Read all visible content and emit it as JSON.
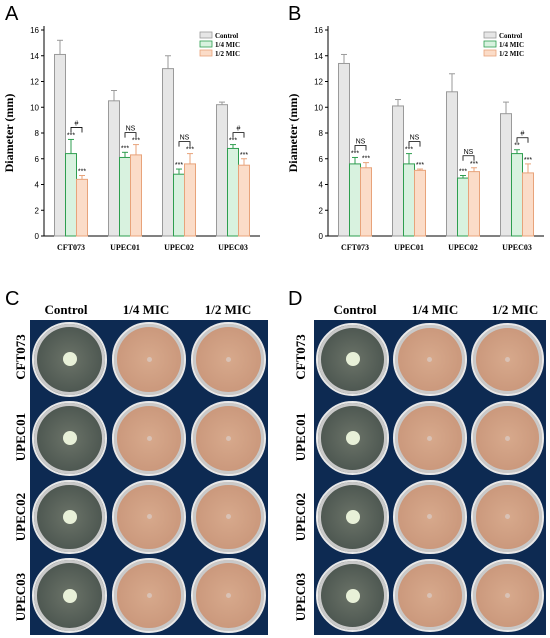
{
  "panels": {
    "a": "A",
    "b": "B",
    "c": "C",
    "d": "D"
  },
  "photo_headers": [
    "Control",
    "1/4 MIC",
    "1/2 MIC"
  ],
  "photo_rows": [
    "CFT073",
    "UPEC01",
    "UPEC02",
    "UPEC03"
  ],
  "colors": {
    "control": "#e6e6e6",
    "control_edge": "#9a9a9a",
    "quarter": "#d8f2df",
    "quarter_edge": "#2e9e4f",
    "half": "#fbdcc8",
    "half_edge": "#e8a37a",
    "dish_control": "#6b7368",
    "dish_treated": "#d7a98c",
    "photo_bg": "#0d2a52"
  },
  "chart_data": [
    {
      "panel": "A",
      "type": "bar",
      "ylabel": "Diameter (mm)",
      "ylim": [
        0,
        16
      ],
      "yticks": [
        "0",
        "2",
        "4",
        "6",
        "8",
        "10",
        "12",
        "14",
        "16"
      ],
      "categories": [
        "CFT073",
        "UPEC01",
        "UPEC02",
        "UPEC03"
      ],
      "series": [
        {
          "name": "Control",
          "values": [
            14.1,
            10.5,
            13.0,
            10.2
          ],
          "errors": [
            1.1,
            0.8,
            1.0,
            0.2
          ]
        },
        {
          "name": "1/4 MIC",
          "values": [
            6.4,
            6.1,
            4.8,
            6.8
          ],
          "errors": [
            1.1,
            0.4,
            0.4,
            0.3
          ]
        },
        {
          "name": "1/2 MIC",
          "values": [
            4.4,
            6.3,
            5.6,
            5.5
          ],
          "errors": [
            0.3,
            0.8,
            0.8,
            0.5
          ]
        }
      ],
      "stars": [
        [
          "",
          "***",
          "***"
        ],
        [
          "",
          "***",
          "***"
        ],
        [
          "",
          "***",
          "***"
        ],
        [
          "",
          "***",
          "***"
        ]
      ],
      "comparisons": [
        "#",
        "NS",
        "NS",
        "#"
      ],
      "legend": "top-right"
    },
    {
      "panel": "B",
      "type": "bar",
      "ylabel": "Diameter (mm)",
      "ylim": [
        0,
        16
      ],
      "yticks": [
        "0",
        "2",
        "4",
        "6",
        "8",
        "10",
        "12",
        "14",
        "16"
      ],
      "categories": [
        "CFT073",
        "UPEC01",
        "UPEC02",
        "UPEC03"
      ],
      "series": [
        {
          "name": "Control",
          "values": [
            13.4,
            10.1,
            11.2,
            9.5
          ],
          "errors": [
            0.7,
            0.5,
            1.4,
            0.9
          ]
        },
        {
          "name": "1/4 MIC",
          "values": [
            5.6,
            5.6,
            4.5,
            6.4
          ],
          "errors": [
            0.5,
            0.8,
            0.2,
            0.3
          ]
        },
        {
          "name": "1/2 MIC",
          "values": [
            5.3,
            5.1,
            5.0,
            4.9
          ],
          "errors": [
            0.4,
            0.1,
            0.3,
            0.7
          ]
        }
      ],
      "stars": [
        [
          "",
          "***",
          "***"
        ],
        [
          "",
          "***",
          "***"
        ],
        [
          "",
          "***",
          "***"
        ],
        [
          "",
          "**",
          "***"
        ]
      ],
      "comparisons": [
        "NS",
        "NS",
        "NS",
        "#"
      ],
      "legend": "top-right"
    }
  ]
}
